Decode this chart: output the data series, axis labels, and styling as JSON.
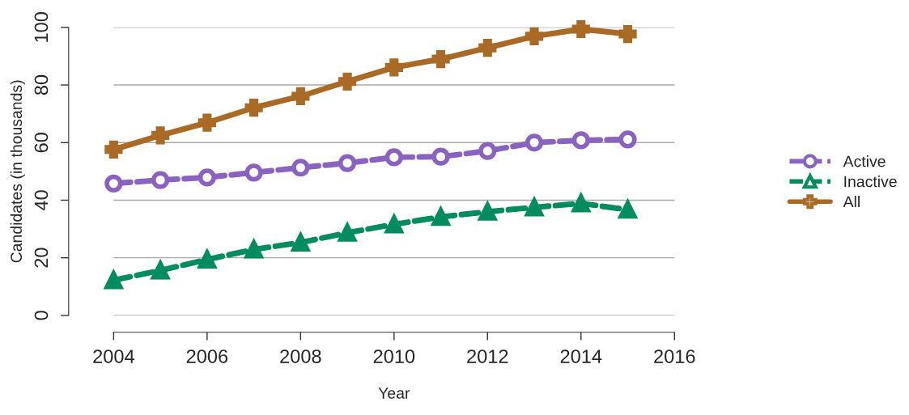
{
  "chart_data": {
    "type": "line",
    "xlabel": "Year",
    "ylabel": "Candidates (in thousands)",
    "x": [
      2004,
      2005,
      2006,
      2007,
      2008,
      2009,
      2010,
      2011,
      2012,
      2013,
      2014,
      2015
    ],
    "series": [
      {
        "name": "Active",
        "color": "#8a63c0",
        "marker": "circle",
        "line_style": "dashed",
        "values": [
          45.8,
          47.0,
          47.9,
          49.6,
          51.3,
          52.9,
          54.9,
          55.1,
          57.1,
          60.0,
          60.8,
          61.1
        ]
      },
      {
        "name": "Inactive",
        "color": "#008c5f",
        "marker": "triangle",
        "line_style": "dashed",
        "values": [
          12.2,
          15.6,
          19.4,
          22.9,
          25.3,
          28.7,
          31.6,
          34.2,
          36.0,
          37.5,
          38.9,
          36.7
        ]
      },
      {
        "name": "All",
        "color": "#a86a25",
        "marker": "cross",
        "line_style": "solid",
        "values": [
          57.6,
          62.5,
          66.9,
          72.1,
          76.1,
          81.2,
          86.1,
          89.0,
          92.9,
          96.9,
          99.4,
          97.7
        ]
      }
    ],
    "xlim": [
      2004,
      2016
    ],
    "xticks": [
      2004,
      2006,
      2008,
      2010,
      2012,
      2014,
      2016
    ],
    "ylim": [
      0,
      100
    ],
    "yticks": [
      0,
      20,
      40,
      60,
      80,
      100
    ],
    "grid": "y",
    "legend": "right"
  }
}
